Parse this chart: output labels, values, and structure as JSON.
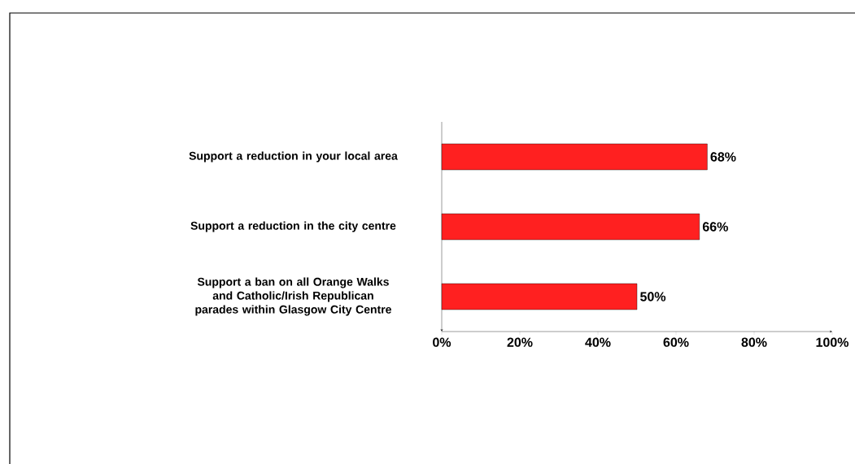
{
  "chart_data": {
    "type": "bar",
    "orientation": "horizontal",
    "categories": [
      "Support a reduction in your local area",
      "Support a reduction in the city centre",
      "Support a ban on all Orange Walks and Catholic/Irish Republican parades within Glasgow City Centre"
    ],
    "values": [
      68,
      66,
      50
    ],
    "value_labels": [
      "68%",
      "66%",
      "50%"
    ],
    "color": "#ff2020",
    "xlim": [
      0,
      100
    ],
    "xticks": [
      {
        "value": 0,
        "label": "0%"
      },
      {
        "value": 20,
        "label": "20%"
      },
      {
        "value": 40,
        "label": "40%"
      },
      {
        "value": 60,
        "label": "60%"
      },
      {
        "value": 80,
        "label": "80%"
      },
      {
        "value": 100,
        "label": "100%"
      }
    ],
    "grid": false
  }
}
